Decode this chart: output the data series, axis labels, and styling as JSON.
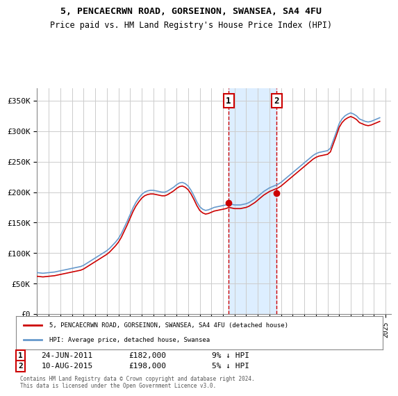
{
  "title": "5, PENCAECRWN ROAD, GORSEINON, SWANSEA, SA4 4FU",
  "subtitle": "Price paid vs. HM Land Registry's House Price Index (HPI)",
  "ylabel_ticks": [
    "£0",
    "£50K",
    "£100K",
    "£150K",
    "£200K",
    "£250K",
    "£300K",
    "£350K"
  ],
  "ytick_values": [
    0,
    50000,
    100000,
    150000,
    200000,
    250000,
    300000,
    350000
  ],
  "ylim": [
    0,
    370000
  ],
  "xlim_start": 1995.0,
  "xlim_end": 2025.5,
  "legend_line1": "5, PENCAECRWN ROAD, GORSEINON, SWANSEA, SA4 4FU (detached house)",
  "legend_line2": "HPI: Average price, detached house, Swansea",
  "sale1_label": "1",
  "sale1_date": "24-JUN-2011",
  "sale1_price": "£182,000",
  "sale1_hpi": "9% ↓ HPI",
  "sale1_x": 2011.48,
  "sale1_y": 182000,
  "sale2_label": "2",
  "sale2_date": "10-AUG-2015",
  "sale2_price": "£198,000",
  "sale2_hpi": "5% ↓ HPI",
  "sale2_x": 2015.61,
  "sale2_y": 198000,
  "highlight_start": 2011.48,
  "highlight_end": 2015.61,
  "red_line_color": "#cc0000",
  "blue_line_color": "#6699cc",
  "highlight_color": "#ddeeff",
  "grid_color": "#cccccc",
  "footer": "Contains HM Land Registry data © Crown copyright and database right 2024.\nThis data is licensed under the Open Government Licence v3.0.",
  "background_color": "#ffffff",
  "hpi_swansea_years": [
    1995.0,
    1995.25,
    1995.5,
    1995.75,
    1996.0,
    1996.25,
    1996.5,
    1996.75,
    1997.0,
    1997.25,
    1997.5,
    1997.75,
    1998.0,
    1998.25,
    1998.5,
    1998.75,
    1999.0,
    1999.25,
    1999.5,
    1999.75,
    2000.0,
    2000.25,
    2000.5,
    2000.75,
    2001.0,
    2001.25,
    2001.5,
    2001.75,
    2002.0,
    2002.25,
    2002.5,
    2002.75,
    2003.0,
    2003.25,
    2003.5,
    2003.75,
    2004.0,
    2004.25,
    2004.5,
    2004.75,
    2005.0,
    2005.25,
    2005.5,
    2005.75,
    2006.0,
    2006.25,
    2006.5,
    2006.75,
    2007.0,
    2007.25,
    2007.5,
    2007.75,
    2008.0,
    2008.25,
    2008.5,
    2008.75,
    2009.0,
    2009.25,
    2009.5,
    2009.75,
    2010.0,
    2010.25,
    2010.5,
    2010.75,
    2011.0,
    2011.25,
    2011.5,
    2011.75,
    2012.0,
    2012.25,
    2012.5,
    2012.75,
    2013.0,
    2013.25,
    2013.5,
    2013.75,
    2014.0,
    2014.25,
    2014.5,
    2014.75,
    2015.0,
    2015.25,
    2015.5,
    2015.75,
    2016.0,
    2016.25,
    2016.5,
    2016.75,
    2017.0,
    2017.25,
    2017.5,
    2017.75,
    2018.0,
    2018.25,
    2018.5,
    2018.75,
    2019.0,
    2019.25,
    2019.5,
    2019.75,
    2020.0,
    2020.25,
    2020.5,
    2020.75,
    2021.0,
    2021.25,
    2021.5,
    2021.75,
    2022.0,
    2022.25,
    2022.5,
    2022.75,
    2023.0,
    2023.25,
    2023.5,
    2023.75,
    2024.0,
    2024.25,
    2024.5
  ],
  "hpi_swansea_values": [
    68000,
    67500,
    67000,
    67500,
    68000,
    68500,
    69000,
    70000,
    71000,
    72000,
    73000,
    74000,
    75000,
    76000,
    77000,
    78000,
    80000,
    83000,
    86000,
    89000,
    92000,
    95000,
    98000,
    101000,
    104000,
    108000,
    113000,
    118000,
    124000,
    132000,
    142000,
    152000,
    163000,
    174000,
    183000,
    190000,
    196000,
    200000,
    202000,
    203000,
    203000,
    202000,
    201000,
    200000,
    200000,
    202000,
    205000,
    208000,
    212000,
    215000,
    216000,
    214000,
    210000,
    203000,
    194000,
    184000,
    176000,
    172000,
    170000,
    171000,
    173000,
    175000,
    176000,
    177000,
    178000,
    179000,
    181000,
    180000,
    179000,
    179000,
    179000,
    180000,
    181000,
    183000,
    186000,
    189000,
    193000,
    197000,
    201000,
    204000,
    207000,
    209000,
    211000,
    213000,
    216000,
    220000,
    224000,
    228000,
    232000,
    236000,
    240000,
    244000,
    248000,
    252000,
    256000,
    260000,
    263000,
    265000,
    266000,
    267000,
    268000,
    272000,
    285000,
    298000,
    312000,
    320000,
    325000,
    328000,
    330000,
    328000,
    325000,
    320000,
    318000,
    316000,
    315000,
    316000,
    318000,
    320000,
    322000
  ],
  "price_paid_years": [
    1995.0,
    1995.25,
    1995.5,
    1995.75,
    1996.0,
    1996.25,
    1996.5,
    1996.75,
    1997.0,
    1997.25,
    1997.5,
    1997.75,
    1998.0,
    1998.25,
    1998.5,
    1998.75,
    1999.0,
    1999.25,
    1999.5,
    1999.75,
    2000.0,
    2000.25,
    2000.5,
    2000.75,
    2001.0,
    2001.25,
    2001.5,
    2001.75,
    2002.0,
    2002.25,
    2002.5,
    2002.75,
    2003.0,
    2003.25,
    2003.5,
    2003.75,
    2004.0,
    2004.25,
    2004.5,
    2004.75,
    2005.0,
    2005.25,
    2005.5,
    2005.75,
    2006.0,
    2006.25,
    2006.5,
    2006.75,
    2007.0,
    2007.25,
    2007.5,
    2007.75,
    2008.0,
    2008.25,
    2008.5,
    2008.75,
    2009.0,
    2009.25,
    2009.5,
    2009.75,
    2010.0,
    2010.25,
    2010.5,
    2010.75,
    2011.0,
    2011.25,
    2011.5,
    2011.75,
    2012.0,
    2012.25,
    2012.5,
    2012.75,
    2013.0,
    2013.25,
    2013.5,
    2013.75,
    2014.0,
    2014.25,
    2014.5,
    2014.75,
    2015.0,
    2015.25,
    2015.5,
    2015.75,
    2016.0,
    2016.25,
    2016.5,
    2016.75,
    2017.0,
    2017.25,
    2017.5,
    2017.75,
    2018.0,
    2018.25,
    2018.5,
    2018.75,
    2019.0,
    2019.25,
    2019.5,
    2019.75,
    2020.0,
    2020.25,
    2020.5,
    2020.75,
    2021.0,
    2021.25,
    2021.5,
    2021.75,
    2022.0,
    2022.25,
    2022.5,
    2022.75,
    2023.0,
    2023.25,
    2023.5,
    2023.75,
    2024.0,
    2024.25,
    2024.5
  ],
  "price_paid_values": [
    62000,
    61500,
    61000,
    61500,
    62000,
    62500,
    63000,
    64000,
    65000,
    66000,
    67000,
    68000,
    69000,
    70000,
    71000,
    72000,
    74000,
    77000,
    80000,
    83000,
    86000,
    89000,
    92000,
    95000,
    98000,
    102000,
    107000,
    112000,
    118000,
    126000,
    136000,
    146000,
    157000,
    168000,
    177000,
    184000,
    190000,
    194000,
    196000,
    197000,
    197000,
    196000,
    195000,
    194000,
    194000,
    196000,
    199000,
    202000,
    206000,
    209000,
    210000,
    208000,
    204000,
    197000,
    188000,
    178000,
    170000,
    166000,
    164000,
    165000,
    167000,
    169000,
    170000,
    171000,
    172000,
    173000,
    175000,
    174000,
    173000,
    173000,
    173000,
    174000,
    175000,
    177000,
    180000,
    183000,
    187000,
    191000,
    195000,
    198000,
    201000,
    203000,
    205000,
    207000,
    210000,
    214000,
    218000,
    222000,
    226000,
    230000,
    234000,
    238000,
    242000,
    246000,
    250000,
    254000,
    257000,
    259000,
    260000,
    261000,
    262000,
    266000,
    279000,
    292000,
    306000,
    314000,
    319000,
    322000,
    324000,
    322000,
    319000,
    314000,
    312000,
    310000,
    309000,
    310000,
    312000,
    314000,
    316000
  ]
}
